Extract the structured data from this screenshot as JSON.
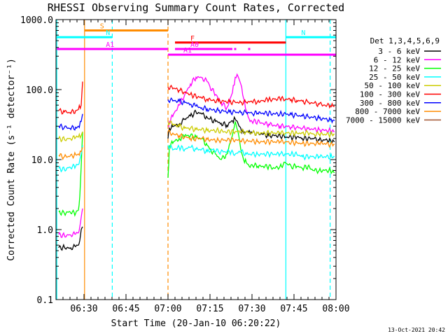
{
  "chart_data": {
    "type": "line",
    "title": "RHESSI Observing Summary Count Rates, Corrected",
    "xlabel": "Start Time (20-Jan-10 06:20:22)",
    "ylabel": "Corrected Count Rate (s⁻¹ detector⁻¹)",
    "y_scale": "log",
    "ylim": [
      0.1,
      1000
    ],
    "xlim_minutes": [
      0,
      100
    ],
    "x_ticks": [
      {
        "t": 10,
        "label": "06:30"
      },
      {
        "t": 25,
        "label": "06:45"
      },
      {
        "t": 40,
        "label": "07:00"
      },
      {
        "t": 55,
        "label": "07:15"
      },
      {
        "t": 70,
        "label": "07:30"
      },
      {
        "t": 85,
        "label": "07:45"
      },
      {
        "t": 100,
        "label": "08:00"
      }
    ],
    "y_ticks": [
      {
        "v": 0.1,
        "label": "0.1"
      },
      {
        "v": 1,
        "label": "1.0"
      },
      {
        "v": 10,
        "label": "10.0"
      },
      {
        "v": 100,
        "label": "100.0"
      },
      {
        "v": 1000,
        "label": "1000.0"
      }
    ],
    "legend_title": "Det 1,3,4,5,6,9",
    "legend_position": "right",
    "series": [
      {
        "name": "3 - 6 keV",
        "color": "#000000",
        "x": [
          1,
          3,
          5,
          7,
          8,
          8.5,
          9,
          9.5,
          40,
          40.5,
          42,
          44,
          46,
          48,
          50,
          52,
          54,
          55,
          57,
          59,
          61,
          63,
          64,
          65,
          66,
          67,
          68,
          69,
          70,
          72,
          74,
          76,
          78,
          80,
          82,
          84,
          86,
          88,
          90,
          92,
          94,
          96,
          98,
          99.5
        ],
        "y": [
          0.55,
          0.56,
          0.54,
          0.57,
          0.6,
          0.7,
          1.0,
          1.1,
          20,
          28,
          30,
          32,
          38,
          42,
          48,
          45,
          40,
          38,
          35,
          33,
          31,
          36,
          38,
          33,
          28,
          24,
          25,
          26,
          24,
          24,
          23,
          22,
          22,
          22,
          21,
          21,
          21,
          20,
          20,
          20,
          19,
          19,
          19,
          18
        ]
      },
      {
        "name": "6 - 12 keV",
        "color": "#ff00ff",
        "x": [
          1,
          3,
          5,
          7,
          8,
          8.5,
          9,
          9.5,
          40,
          40.5,
          42,
          44,
          46,
          48,
          50,
          52,
          54,
          55,
          57,
          59,
          61,
          63,
          64,
          65,
          66,
          67,
          68,
          69,
          70,
          72,
          74,
          76,
          78,
          80,
          82,
          84,
          86,
          88,
          90,
          92,
          94,
          96,
          98,
          99.5
        ],
        "y": [
          0.85,
          0.82,
          0.84,
          0.86,
          0.9,
          1.1,
          1.5,
          2.0,
          30,
          35,
          45,
          60,
          85,
          120,
          150,
          148,
          130,
          110,
          85,
          65,
          55,
          90,
          150,
          155,
          120,
          75,
          50,
          38,
          35,
          35,
          33,
          32,
          31,
          30,
          30,
          29,
          29,
          28,
          28,
          27,
          27,
          26,
          26,
          25
        ]
      },
      {
        "name": "12 - 25 keV",
        "color": "#00ff00",
        "x": [
          1,
          3,
          5,
          7,
          8,
          8.5,
          9,
          9.5,
          40,
          40.5,
          42,
          44,
          46,
          48,
          50,
          52,
          54,
          55,
          57,
          59,
          61,
          63,
          64,
          65,
          66,
          67,
          68,
          69,
          70,
          72,
          74,
          76,
          78,
          80,
          82,
          84,
          86,
          88,
          90,
          92,
          94,
          96,
          98,
          99.5
        ],
        "y": [
          1.8,
          1.7,
          1.8,
          1.7,
          1.9,
          3,
          8,
          25,
          5.5,
          16,
          18,
          20,
          22,
          22,
          21,
          20,
          16,
          14,
          12,
          10,
          12,
          22,
          35,
          25,
          14,
          10,
          9,
          8,
          8.5,
          8,
          8,
          8,
          7.5,
          8,
          9,
          8,
          8,
          7.5,
          8,
          7,
          7,
          7,
          7,
          6.5
        ]
      },
      {
        "name": "25 - 50 keV",
        "color": "#00ffff",
        "x": [
          1,
          3,
          5,
          7,
          8,
          8.5,
          9,
          9.5,
          40,
          42,
          44,
          46,
          48,
          50,
          52,
          54,
          56,
          58,
          60,
          62,
          64,
          66,
          68,
          70,
          72,
          74,
          76,
          78,
          80,
          82,
          84,
          86,
          88,
          90,
          92,
          94,
          96,
          98,
          99.5
        ],
        "y": [
          7.5,
          7.2,
          7.8,
          8.0,
          8.5,
          10,
          12,
          16,
          16,
          14,
          15,
          14,
          15,
          14,
          14,
          13,
          14,
          13,
          13,
          13,
          12,
          13,
          12,
          12,
          12,
          12,
          12,
          12,
          12,
          12,
          12,
          12,
          11,
          11,
          11,
          11,
          11,
          11,
          11
        ]
      },
      {
        "name": "50 - 100 keV",
        "color": "#cccc00",
        "x": [
          1,
          3,
          5,
          7,
          8,
          9,
          9.5,
          40,
          42,
          44,
          46,
          48,
          50,
          52,
          54,
          56,
          58,
          60,
          62,
          64,
          66,
          68,
          70,
          72,
          74,
          76,
          78,
          80,
          82,
          84,
          86,
          88,
          90,
          92,
          94,
          96,
          98,
          99.5
        ],
        "y": [
          20,
          19.5,
          20,
          20.5,
          21,
          22,
          25,
          35,
          32,
          30,
          28,
          28,
          27,
          27,
          26,
          26,
          26,
          25,
          25,
          25,
          25,
          25,
          24,
          24,
          24,
          24,
          24,
          24,
          24,
          24,
          24,
          24,
          24,
          23,
          23,
          23,
          23,
          23
        ]
      },
      {
        "name": "100 - 300 keV",
        "color": "#ff0000",
        "x": [
          1,
          3,
          5,
          7,
          8,
          9,
          9.5,
          40,
          42,
          44,
          46,
          48,
          50,
          52,
          54,
          56,
          58,
          60,
          62,
          64,
          66,
          68,
          70,
          72,
          74,
          76,
          78,
          80,
          82,
          84,
          86,
          88,
          90,
          92,
          94,
          96,
          98,
          99.5
        ],
        "y": [
          50,
          48,
          47,
          50,
          52,
          60,
          130,
          110,
          105,
          98,
          92,
          86,
          80,
          76,
          73,
          70,
          68,
          68,
          67,
          66,
          66,
          66,
          67,
          68,
          70,
          72,
          73,
          74,
          73,
          72,
          70,
          68,
          66,
          64,
          62,
          60,
          59,
          58
        ]
      },
      {
        "name": "300 - 800 keV",
        "color": "#0000ff",
        "x": [
          1,
          3,
          5,
          7,
          8,
          9,
          9.5,
          40,
          42,
          44,
          46,
          48,
          50,
          52,
          54,
          56,
          58,
          60,
          62,
          64,
          66,
          68,
          70,
          72,
          74,
          76,
          78,
          80,
          82,
          84,
          86,
          88,
          90,
          92,
          94,
          96,
          98,
          99.5
        ],
        "y": [
          30,
          29,
          28,
          29,
          30,
          35,
          45,
          72,
          70,
          68,
          65,
          62,
          58,
          55,
          53,
          51,
          50,
          49,
          48,
          48,
          47,
          47,
          46,
          46,
          46,
          46,
          45,
          45,
          45,
          44,
          43,
          42,
          41,
          40,
          39,
          38,
          37,
          36
        ]
      },
      {
        "name": "800 - 7000 keV",
        "color": "#ff8c00",
        "x": [
          1,
          3,
          5,
          7,
          8,
          9,
          9.5,
          40,
          42,
          44,
          46,
          48,
          50,
          52,
          54,
          56,
          58,
          60,
          62,
          64,
          66,
          68,
          70,
          72,
          74,
          76,
          78,
          80,
          82,
          84,
          86,
          88,
          90,
          92,
          94,
          96,
          98,
          99.5
        ],
        "y": [
          11.5,
          11,
          11.2,
          11.8,
          12,
          13,
          15,
          25,
          23,
          22,
          21,
          20,
          20,
          20,
          19.5,
          19,
          19,
          19,
          19,
          19,
          18.5,
          18.5,
          18.5,
          18,
          18,
          18,
          18,
          18,
          18,
          17.5,
          17.5,
          17,
          17,
          17,
          17,
          17,
          16.5,
          16.5
        ]
      },
      {
        "name": "7000 - 15000 keV",
        "color": "#a0522d",
        "x": [],
        "y": []
      }
    ],
    "vlines": [
      {
        "t": 0.3,
        "color": "#00ffff",
        "style": "solid"
      },
      {
        "t": 10.2,
        "color": "#ff8c00",
        "style": "solid"
      },
      {
        "t": 20.1,
        "color": "#00ffff",
        "style": "dashed"
      },
      {
        "t": 40.0,
        "color": "#ff8c00",
        "style": "dashed"
      },
      {
        "t": 82.1,
        "color": "#00ffff",
        "style": "solid"
      },
      {
        "t": 97.9,
        "color": "#00ffff",
        "style": "dashed"
      }
    ],
    "interval_bars": [
      {
        "label": "S",
        "color": "#ff8c00",
        "t0": 10.2,
        "t1": 40.0,
        "level": 700
      },
      {
        "label": "N",
        "color": "#00ffff",
        "t0": 0.3,
        "t1": 20.1,
        "level": 560
      },
      {
        "label": "N",
        "color": "#00ffff",
        "t0": 82.1,
        "t1": 100,
        "level": 560
      },
      {
        "label": "F",
        "color": "#ff0000",
        "t0": 42.5,
        "t1": 82.1,
        "level": 470
      },
      {
        "label": "A1",
        "color": "#ff00ff",
        "t0": 0.3,
        "t1": 40.0,
        "level": 380
      },
      {
        "label": "A1",
        "color": "#ff00ff",
        "t0": 40.0,
        "t1": 100,
        "level": 315
      },
      {
        "label": "A0",
        "color": "#ff00ff",
        "t0": 42.5,
        "t1": 63,
        "level": 380
      }
    ],
    "a0_dots_t": [
      49,
      54,
      59,
      64,
      69
    ],
    "a0_dots_level": 380,
    "footer_date": "13-Oct-2021 20:42"
  }
}
